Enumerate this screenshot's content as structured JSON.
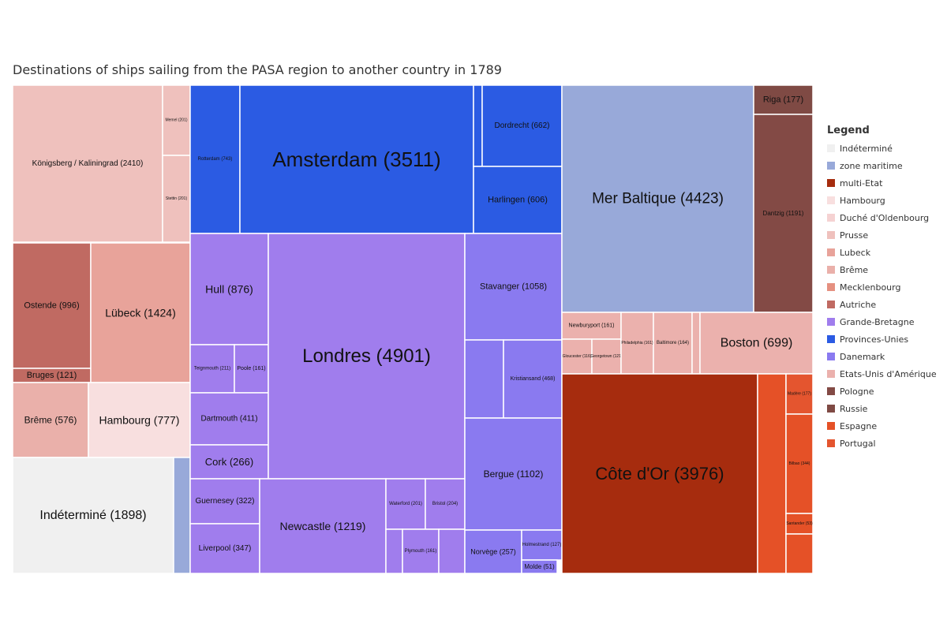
{
  "title": "Destinations of ships sailing from the PASA region to another country in 1789",
  "legend": {
    "title": "Legend",
    "items": [
      {
        "label": "Indéterminé",
        "color": "#f0f0f0"
      },
      {
        "label": "zone maritime",
        "color": "#98a9d9"
      },
      {
        "label": "multi-Etat",
        "color": "#a62c0e"
      },
      {
        "label": "Hambourg",
        "color": "#f8dfdf"
      },
      {
        "label": "Duché d'Oldenbourg",
        "color": "#f5d2d2"
      },
      {
        "label": "Prusse",
        "color": "#efc1bd"
      },
      {
        "label": "Lubeck",
        "color": "#e8a39a"
      },
      {
        "label": "Brême",
        "color": "#eab0aa"
      },
      {
        "label": "Mecklenbourg",
        "color": "#e59080"
      },
      {
        "label": "Autriche",
        "color": "#c06a62"
      },
      {
        "label": "Grande-Bretagne",
        "color": "#a07ded"
      },
      {
        "label": "Provinces-Unies",
        "color": "#2b5be3"
      },
      {
        "label": "Danemark",
        "color": "#8a7af0"
      },
      {
        "label": "Etats-Unis d'Amérique",
        "color": "#ebb1ad"
      },
      {
        "label": "Pologne",
        "color": "#834a45"
      },
      {
        "label": "Russie",
        "color": "#7f4a44"
      },
      {
        "label": "Espagne",
        "color": "#e55127"
      },
      {
        "label": "Portugal",
        "color": "#e4552f"
      }
    ]
  },
  "chart_data": {
    "type": "treemap",
    "title": "Destinations of ships sailing from the PASA region to another country in 1789",
    "nodes": [
      {
        "label": "Königsberg / Kaliningrad (2410)",
        "value": 2410,
        "group": "Prusse"
      },
      {
        "label": "Memel (201)",
        "value": 201,
        "group": "Prusse"
      },
      {
        "label": "Stettin (201)",
        "value": 201,
        "group": "Prusse"
      },
      {
        "label": "Ostende (996)",
        "value": 996,
        "group": "Autriche"
      },
      {
        "label": "Bruges (121)",
        "value": 121,
        "group": "Autriche"
      },
      {
        "label": "Lübeck (1424)",
        "value": 1424,
        "group": "Lubeck"
      },
      {
        "label": "Brême (576)",
        "value": 576,
        "group": "Brême"
      },
      {
        "label": "Hambourg (777)",
        "value": 777,
        "group": "Hambourg"
      },
      {
        "label": "Indéterminé (1898)",
        "value": 1898,
        "group": "Indéterminé"
      },
      {
        "label": "",
        "value": 200,
        "group": "zone maritime"
      },
      {
        "label": "Rotterdam (743)",
        "value": 743,
        "group": "Provinces-Unies"
      },
      {
        "label": "Amsterdam (3511)",
        "value": 3511,
        "group": "Provinces-Unies"
      },
      {
        "label": "",
        "value": 80,
        "group": "Provinces-Unies"
      },
      {
        "label": "Dordrecht (662)",
        "value": 662,
        "group": "Provinces-Unies"
      },
      {
        "label": "Harlingen (606)",
        "value": 606,
        "group": "Provinces-Unies"
      },
      {
        "label": "Hull (876)",
        "value": 876,
        "group": "Grande-Bretagne"
      },
      {
        "label": "Teignmouth (211)",
        "value": 211,
        "group": "Grande-Bretagne"
      },
      {
        "label": "Poole (161)",
        "value": 161,
        "group": "Grande-Bretagne"
      },
      {
        "label": "Dartmouth (411)",
        "value": 411,
        "group": "Grande-Bretagne"
      },
      {
        "label": "Cork (266)",
        "value": 266,
        "group": "Grande-Bretagne"
      },
      {
        "label": "Guernesey (322)",
        "value": 322,
        "group": "Grande-Bretagne"
      },
      {
        "label": "Liverpool (347)",
        "value": 347,
        "group": "Grande-Bretagne"
      },
      {
        "label": "Londres (4901)",
        "value": 4901,
        "group": "Grande-Bretagne"
      },
      {
        "label": "Newcastle (1219)",
        "value": 1219,
        "group": "Grande-Bretagne"
      },
      {
        "label": "Waterford (201)",
        "value": 201,
        "group": "Grande-Bretagne"
      },
      {
        "label": "Bristol (204)",
        "value": 204,
        "group": "Grande-Bretagne"
      },
      {
        "label": "",
        "value": 60,
        "group": "Grande-Bretagne"
      },
      {
        "label": "Plymouth (161)",
        "value": 161,
        "group": "Grande-Bretagne"
      },
      {
        "label": "",
        "value": 110,
        "group": "Grande-Bretagne"
      },
      {
        "label": "Stavanger (1058)",
        "value": 1058,
        "group": "Danemark"
      },
      {
        "label": "",
        "value": 320,
        "group": "Danemark"
      },
      {
        "label": "Kristiansand (468)",
        "value": 468,
        "group": "Danemark"
      },
      {
        "label": "Bergue  (1102)",
        "value": 1102,
        "group": "Danemark"
      },
      {
        "label": "Norvège (257)",
        "value": 257,
        "group": "Danemark"
      },
      {
        "label": "Holmestrand (127)",
        "value": 127,
        "group": "Danemark"
      },
      {
        "label": "Molde (51)",
        "value": 51,
        "group": "Danemark"
      },
      {
        "label": "Mer Baltique (4423)",
        "value": 4423,
        "group": "zone maritime"
      },
      {
        "label": "Riga (177)",
        "value": 177,
        "group": "Russie"
      },
      {
        "label": "Dantzig (1191)",
        "value": 1191,
        "group": "Pologne"
      },
      {
        "label": "Newburyport (161)",
        "value": 161,
        "group": "Etats-Unis d'Amérique"
      },
      {
        "label": "Gloucester (116)",
        "value": 116,
        "group": "Etats-Unis d'Amérique"
      },
      {
        "label": "Georgetown (121)",
        "value": 121,
        "group": "Etats-Unis d'Amérique"
      },
      {
        "label": "Philadelphia (161)",
        "value": 161,
        "group": "Etats-Unis d'Amérique"
      },
      {
        "label": "Baltimore (164)",
        "value": 164,
        "group": "Etats-Unis d'Amérique"
      },
      {
        "label": "",
        "value": 30,
        "group": "Etats-Unis d'Amérique"
      },
      {
        "label": "Boston (699)",
        "value": 699,
        "group": "Etats-Unis d'Amérique"
      },
      {
        "label": "Côte d'Or (3976)",
        "value": 3976,
        "group": "multi-Etat"
      },
      {
        "label": "",
        "value": 440,
        "group": "Espagne"
      },
      {
        "label": "Madère (177)",
        "value": 177,
        "group": "Portugal"
      },
      {
        "label": "Bilbao (344)",
        "value": 344,
        "group": "Espagne"
      },
      {
        "label": "Santander (53)",
        "value": 53,
        "group": "Espagne"
      },
      {
        "label": "",
        "value": 130,
        "group": "Espagne"
      }
    ]
  }
}
